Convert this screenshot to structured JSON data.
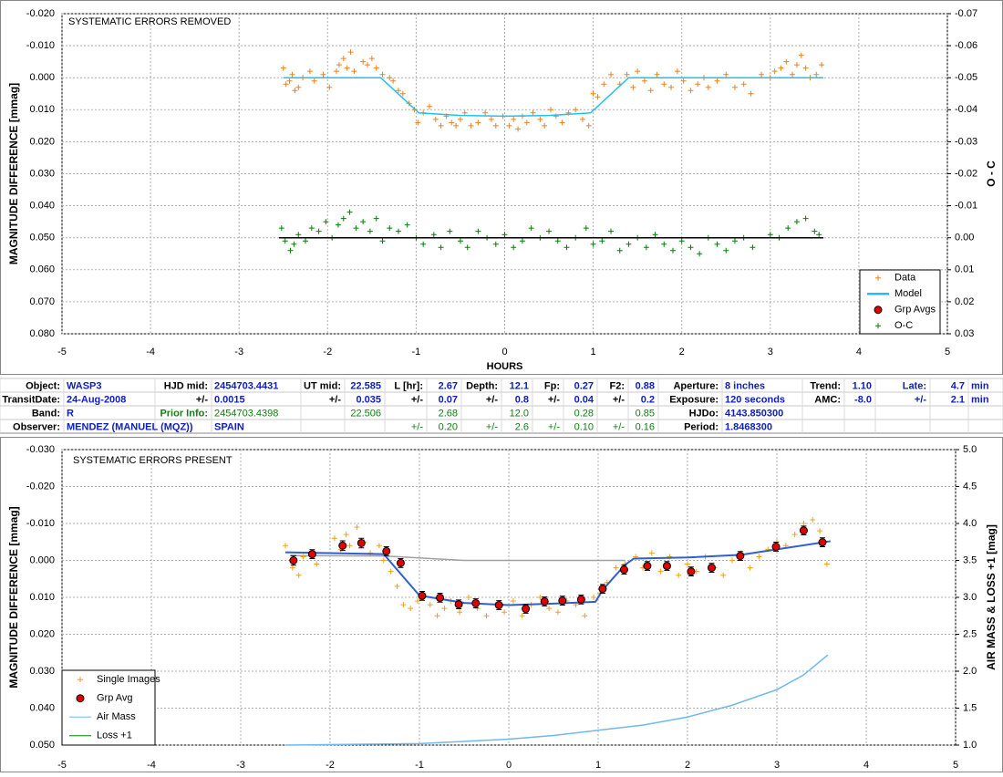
{
  "chart_data": [
    {
      "type": "scatter",
      "title": "SYSTEMATIC ERRORS REMOVED",
      "xlabel": "HOURS",
      "ylabel": "MAGNITUDE DIFFERENCE [mmag]",
      "y2label": "O - C",
      "xlim": [
        -5,
        5
      ],
      "xticks": [
        -5,
        -4,
        -3,
        -2,
        -1,
        0,
        1,
        2,
        3,
        4,
        5
      ],
      "ylim": [
        -0.02,
        0.08
      ],
      "y_inverted": true,
      "yticks": [
        {
          "value": -0.02,
          "label": "-0.020"
        },
        {
          "value": -0.01,
          "label": "-0.010"
        },
        {
          "value": 0,
          "label": "0.000"
        },
        {
          "value": 0.01,
          "label": "0.010"
        },
        {
          "value": 0.02,
          "label": "0.020"
        },
        {
          "value": 0.03,
          "label": "0.030"
        },
        {
          "value": 0.04,
          "label": "0.040"
        },
        {
          "value": 0.05,
          "label": "0.050"
        },
        {
          "value": 0.06,
          "label": "0.060"
        },
        {
          "value": 0.07,
          "label": "0.070"
        },
        {
          "value": 0.08,
          "label": "0.080"
        }
      ],
      "y2lim": [
        -0.07,
        0.03
      ],
      "y2_inverted": true,
      "y2ticks": [
        {
          "value": -0.07,
          "label": "-0.07"
        },
        {
          "value": -0.06,
          "label": "-0.06"
        },
        {
          "value": -0.05,
          "label": "-0.05"
        },
        {
          "value": -0.04,
          "label": "-0.04"
        },
        {
          "value": -0.03,
          "label": "-0.03"
        },
        {
          "value": -0.02,
          "label": "-0.02"
        },
        {
          "value": -0.01,
          "label": "-0.01"
        },
        {
          "value": 0,
          "label": "0.00"
        },
        {
          "value": 0.01,
          "label": "0.01"
        },
        {
          "value": 0.02,
          "label": "0.02"
        },
        {
          "value": 0.03,
          "label": "0.03"
        }
      ],
      "grid": true,
      "legend": "lower right",
      "series": [
        {
          "name": "Data",
          "color": "#f08020",
          "marker": "plus",
          "x": [
            -2.5,
            -2.47,
            -2.43,
            -2.4,
            -2.37,
            -2.33,
            -2.28,
            -2.2,
            -2.15,
            -2.05,
            -1.98,
            -1.9,
            -1.87,
            -1.82,
            -1.78,
            -1.74,
            -1.7,
            -1.6,
            -1.55,
            -1.5,
            -1.45,
            -1.38,
            -1.3,
            -1.26,
            -1.2,
            -1.15,
            -1.08,
            -1.02,
            -0.98,
            -0.92,
            -0.85,
            -0.78,
            -0.72,
            -0.66,
            -0.6,
            -0.55,
            -0.5,
            -0.45,
            -0.38,
            -0.3,
            -0.22,
            -0.15,
            -0.1,
            -0.02,
            0.05,
            0.1,
            0.15,
            0.2,
            0.25,
            0.32,
            0.4,
            0.45,
            0.52,
            0.58,
            0.65,
            0.72,
            0.8,
            0.88,
            0.95,
            1.0,
            1.05,
            1.12,
            1.2,
            1.3,
            1.38,
            1.45,
            1.5,
            1.58,
            1.65,
            1.72,
            1.8,
            1.88,
            1.95,
            2.02,
            2.1,
            2.18,
            2.25,
            2.3,
            2.4,
            2.5,
            2.6,
            2.7,
            2.78,
            2.9,
            3.0,
            3.05,
            3.12,
            3.18,
            3.25,
            3.3,
            3.35,
            3.4,
            3.45,
            3.52,
            3.58
          ],
          "values": [
            -0.003,
            0.002,
            0.001,
            -0.001,
            0.004,
            0.003,
            0,
            -0.002,
            0.001,
            -0.001,
            0.003,
            -0.002,
            -0.004,
            -0.006,
            -0.003,
            -0.008,
            -0.002,
            -0.005,
            -0.004,
            -0.006,
            -0.003,
            -0.001,
            0,
            0.001,
            0.004,
            0.005,
            0.008,
            0.01,
            0.014,
            0.011,
            0.009,
            0.013,
            0.015,
            0.012,
            0.014,
            0.015,
            0.013,
            0.011,
            0.015,
            0.014,
            0.011,
            0.013,
            0.015,
            0.012,
            0.015,
            0.013,
            0.016,
            0.012,
            0.014,
            0.011,
            0.013,
            0.015,
            0.01,
            0.012,
            0.014,
            0.011,
            0.01,
            0.013,
            0.015,
            0.005,
            0.006,
            0.002,
            -0.001,
            0.002,
            -0.001,
            0.003,
            -0.002,
            0.001,
            0.004,
            -0.001,
            0.002,
            0.003,
            -0.002,
            0.001,
            0.004,
            0.002,
            0,
            0.003,
            0.001,
            -0.001,
            0.003,
            0.002,
            0.005,
            -0.001,
            0,
            -0.002,
            -0.003,
            -0.005,
            -0.001,
            -0.004,
            -0.007,
            -0.003,
            0,
            -0.001,
            -0.004
          ]
        },
        {
          "name": "Model",
          "color": "#20c0f0",
          "style": "line",
          "x": [
            -2.5,
            -1.4,
            -0.97,
            -0.5,
            0,
            0.5,
            0.97,
            1.4,
            3.6
          ],
          "values": [
            0,
            0,
            0.011,
            0.0118,
            0.012,
            0.0118,
            0.011,
            0,
            0
          ]
        },
        {
          "name": "Grp Avgs",
          "color": "#e00000",
          "marker": "circle",
          "x": [],
          "values": []
        },
        {
          "name": "O-C",
          "color": "#008000",
          "marker": "plus",
          "axis": "y2",
          "x": [
            -2.52,
            -2.48,
            -2.42,
            -2.38,
            -2.33,
            -2.25,
            -2.18,
            -2.1,
            -2.02,
            -1.95,
            -1.88,
            -1.82,
            -1.75,
            -1.68,
            -1.6,
            -1.52,
            -1.45,
            -1.38,
            -1.3,
            -1.2,
            -1.1,
            -1.0,
            -0.92,
            -0.8,
            -0.72,
            -0.62,
            -0.5,
            -0.42,
            -0.3,
            -0.2,
            -0.1,
            0.0,
            0.1,
            0.2,
            0.3,
            0.4,
            0.5,
            0.6,
            0.7,
            0.8,
            0.92,
            1.0,
            1.1,
            1.2,
            1.3,
            1.4,
            1.5,
            1.6,
            1.7,
            1.8,
            1.9,
            2.0,
            2.1,
            2.2,
            2.3,
            2.4,
            2.5,
            2.6,
            2.7,
            2.8,
            3.0,
            3.1,
            3.2,
            3.3,
            3.4,
            3.5,
            3.55
          ],
          "values": [
            -0.003,
            0.001,
            0.004,
            0.002,
            -0.001,
            0.001,
            -0.003,
            -0.002,
            -0.005,
            0,
            -0.004,
            -0.006,
            -0.008,
            -0.003,
            -0.005,
            -0.002,
            -0.006,
            0.001,
            -0.003,
            -0.002,
            -0.004,
            0,
            0.002,
            -0.001,
            0.003,
            -0.002,
            0.001,
            0.003,
            -0.002,
            0,
            0.002,
            -0.001,
            0.003,
            0.001,
            -0.003,
            0,
            -0.002,
            0.001,
            0.003,
            0,
            -0.003,
            0.002,
            0.001,
            -0.002,
            0.004,
            0.002,
            0,
            0.003,
            -0.001,
            0.002,
            0.004,
            0.001,
            0.003,
            0.005,
            0,
            0.002,
            0.004,
            0.001,
            0,
            0.003,
            -0.001,
            0,
            -0.003,
            -0.005,
            -0.006,
            -0.002,
            -0.001
          ]
        },
        {
          "color": "#000000",
          "style": "line",
          "axis": "y2",
          "x": [
            -2.55,
            3.6
          ],
          "values": [
            0,
            0
          ]
        }
      ]
    },
    {
      "type": "scatter",
      "title": "SYSTEMATIC ERRORS PRESENT",
      "ylabel": "MAGNITUDE DIFFERENCE [mmag]",
      "y2label": "AIR MASS & LOSS +1 [mag]",
      "xlim": [
        -5,
        5
      ],
      "xticks": [
        -5,
        -4,
        -3,
        -2,
        -1,
        0,
        1,
        2,
        3,
        4,
        5
      ],
      "ylim": [
        -0.03,
        0.05
      ],
      "y_inverted": true,
      "yticks": [
        {
          "value": -0.03,
          "label": "-0.030"
        },
        {
          "value": -0.02,
          "label": "-0.020"
        },
        {
          "value": -0.01,
          "label": "-0.010"
        },
        {
          "value": 0,
          "label": "0.000"
        },
        {
          "value": 0.01,
          "label": "0.010"
        },
        {
          "value": 0.02,
          "label": "0.020"
        },
        {
          "value": 0.03,
          "label": "0.030"
        },
        {
          "value": 0.04,
          "label": "0.040"
        },
        {
          "value": 0.05,
          "label": "0.050"
        }
      ],
      "y2lim": [
        1,
        5
      ],
      "y2_inverted": false,
      "y2ticks": [
        {
          "value": 5,
          "label": "5.0"
        },
        {
          "value": 4.5,
          "label": "4.5"
        },
        {
          "value": 4,
          "label": "4.0"
        },
        {
          "value": 3.5,
          "label": "3.5"
        },
        {
          "value": 3,
          "label": "3.0"
        },
        {
          "value": 2.5,
          "label": "2.5"
        },
        {
          "value": 2,
          "label": "2.0"
        },
        {
          "value": 1.5,
          "label": "1.5"
        },
        {
          "value": 1,
          "label": "1.0"
        }
      ],
      "grid": true,
      "legend": "lower left",
      "series": [
        {
          "color": "#a0a0a0",
          "style": "line",
          "x": [
            -2.45,
            -1.4,
            -0.5,
            1.3
          ],
          "values": [
            -0.0013,
            -0.0012,
            0,
            0
          ]
        },
        {
          "name": "Single Images",
          "color": "#f0a020",
          "marker": "plus",
          "x": [
            -2.5,
            -2.42,
            -2.35,
            -2.3,
            -2.2,
            -2.15,
            -1.95,
            -1.88,
            -1.82,
            -1.78,
            -1.7,
            -1.62,
            -1.55,
            -1.45,
            -1.4,
            -1.32,
            -1.25,
            -1.18,
            -1.1,
            -1.02,
            -0.95,
            -0.88,
            -0.8,
            -0.72,
            -0.65,
            -0.55,
            -0.45,
            -0.35,
            -0.25,
            -0.15,
            -0.05,
            0.05,
            0.15,
            0.25,
            0.35,
            0.45,
            0.55,
            0.65,
            0.75,
            0.85,
            0.95,
            1.02,
            1.1,
            1.2,
            1.3,
            1.42,
            1.5,
            1.6,
            1.7,
            1.8,
            1.9,
            2.0,
            2.1,
            2.2,
            2.3,
            2.4,
            2.5,
            2.6,
            2.7,
            2.8,
            2.9,
            3.0,
            3.1,
            3.2,
            3.3,
            3.4,
            3.48,
            3.56
          ],
          "values": [
            -0.004,
            0.002,
            0.004,
            -0.001,
            -0.002,
            0.001,
            -0.006,
            -0.003,
            -0.007,
            -0.004,
            -0.009,
            -0.005,
            -0.002,
            -0.004,
            0,
            0.003,
            0.007,
            0.012,
            0.013,
            0.011,
            0.009,
            0.012,
            0.015,
            0.013,
            0.011,
            0.014,
            0.01,
            0.013,
            0.015,
            0.012,
            0.014,
            0.011,
            0.015,
            0.012,
            0.01,
            0.013,
            0.014,
            0.011,
            0.012,
            0.015,
            0.01,
            0.009,
            0.006,
            0.002,
            0.001,
            -0.001,
            0.002,
            -0.002,
            0.003,
            -0.001,
            0.004,
            0.001,
            0.003,
            -0.001,
            0.002,
            0.004,
            0,
            -0.002,
            0.002,
            -0.001,
            -0.003,
            -0.005,
            -0.004,
            -0.007,
            -0.01,
            -0.011,
            -0.008,
            0.001
          ]
        },
        {
          "color": "#3060d0",
          "style": "line",
          "width": 2,
          "x": [
            -2.5,
            -1.4,
            -1.0,
            -0.5,
            0,
            0.5,
            0.97,
            1.05,
            1.3,
            1.4,
            2.0,
            2.6,
            3.0,
            3.6
          ],
          "values": [
            -0.0022,
            -0.0017,
            0.0095,
            0.0115,
            0.0121,
            0.0117,
            0.0112,
            0.008,
            0.0012,
            -0.0005,
            -0.0008,
            -0.0015,
            -0.003,
            -0.0052
          ]
        },
        {
          "name": "Grp Avg",
          "color": "#e00000",
          "marker": "circle",
          "x": [
            -2.41,
            -2.2,
            -1.86,
            -1.65,
            -1.37,
            -1.21,
            -0.97,
            -0.77,
            -0.56,
            -0.37,
            -0.11,
            0.19,
            0.4,
            0.6,
            0.81,
            1.05,
            1.29,
            1.55,
            1.77,
            2.04,
            2.27,
            2.59,
            2.99,
            3.3,
            3.51
          ],
          "values": [
            0,
            -0.0017,
            -0.004,
            -0.0047,
            -0.0025,
            0.0007,
            0.0096,
            0.0101,
            0.0119,
            0.0116,
            0.0121,
            0.0131,
            0.0111,
            0.0109,
            0.0106,
            0.0077,
            0.0025,
            0.0015,
            0.0015,
            0.003,
            0.002,
            -0.0012,
            -0.0037,
            -0.0081,
            -0.0049
          ],
          "errors": [
            0.0013,
            0.0012,
            0.0013,
            0.0013,
            0.0012,
            0.0012,
            0.0012,
            0.0012,
            0.0012,
            0.0012,
            0.0012,
            0.0012,
            0.0012,
            0.0012,
            0.0012,
            0.0012,
            0.0012,
            0.0012,
            0.0012,
            0.0012,
            0.0012,
            0.0012,
            0.0012,
            0.0012,
            0.0012
          ]
        },
        {
          "name": "Air Mass",
          "color": "#70b8f0",
          "style": "line",
          "axis": "y2",
          "x": [
            -2.5,
            -1,
            0,
            0.5,
            1,
            1.5,
            2,
            2.5,
            3,
            3.3,
            3.57
          ],
          "values": [
            1.0,
            1.02,
            1.08,
            1.13,
            1.2,
            1.27,
            1.38,
            1.54,
            1.75,
            1.95,
            2.22
          ]
        },
        {
          "name": "Loss +1",
          "color": "#008000",
          "style": "line",
          "axis": "y2",
          "x": [],
          "values": []
        }
      ]
    }
  ],
  "info_table": {
    "rows": [
      [
        "Object:",
        "WASP3",
        "HJD mid:",
        "2454703.4431",
        "UT mid:",
        "22.585",
        "L [hr]:",
        "2.67",
        "Depth:",
        "12.1",
        "Fp:",
        "0.27",
        "F2:",
        "0.88",
        "Aperture:",
        "8 inches",
        "Trend:",
        "1.10",
        "Late:",
        "4.7",
        "min"
      ],
      [
        "TransitDate:",
        "24-Aug-2008",
        "+/-",
        "0.0015",
        "+/-",
        "0.035",
        "+/-",
        "0.07",
        "+/-",
        "0.8",
        "+/-",
        "0.04",
        "+/-",
        "0.2",
        "Exposure:",
        "120 seconds",
        "AMC:",
        "-8.0",
        "+/-",
        "2.1",
        "min"
      ],
      [
        "Band:",
        "R",
        "Prior Info:",
        "2454703.4398",
        null,
        "22.506",
        null,
        "2.68",
        null,
        "12.0",
        null,
        "0.28",
        null,
        "0.85",
        "HJDo:",
        "4143.850300",
        null,
        null,
        null,
        null,
        null
      ],
      [
        "Observer:",
        "MENDEZ (MANUEL (MQZ))",
        null,
        "SPAIN",
        null,
        null,
        "+/-",
        "0.20",
        "+/-",
        "2.6",
        "+/-",
        "0.10",
        "+/-",
        "0.16",
        "Period:",
        "1.8468300",
        null,
        null,
        null,
        null,
        null
      ]
    ]
  }
}
